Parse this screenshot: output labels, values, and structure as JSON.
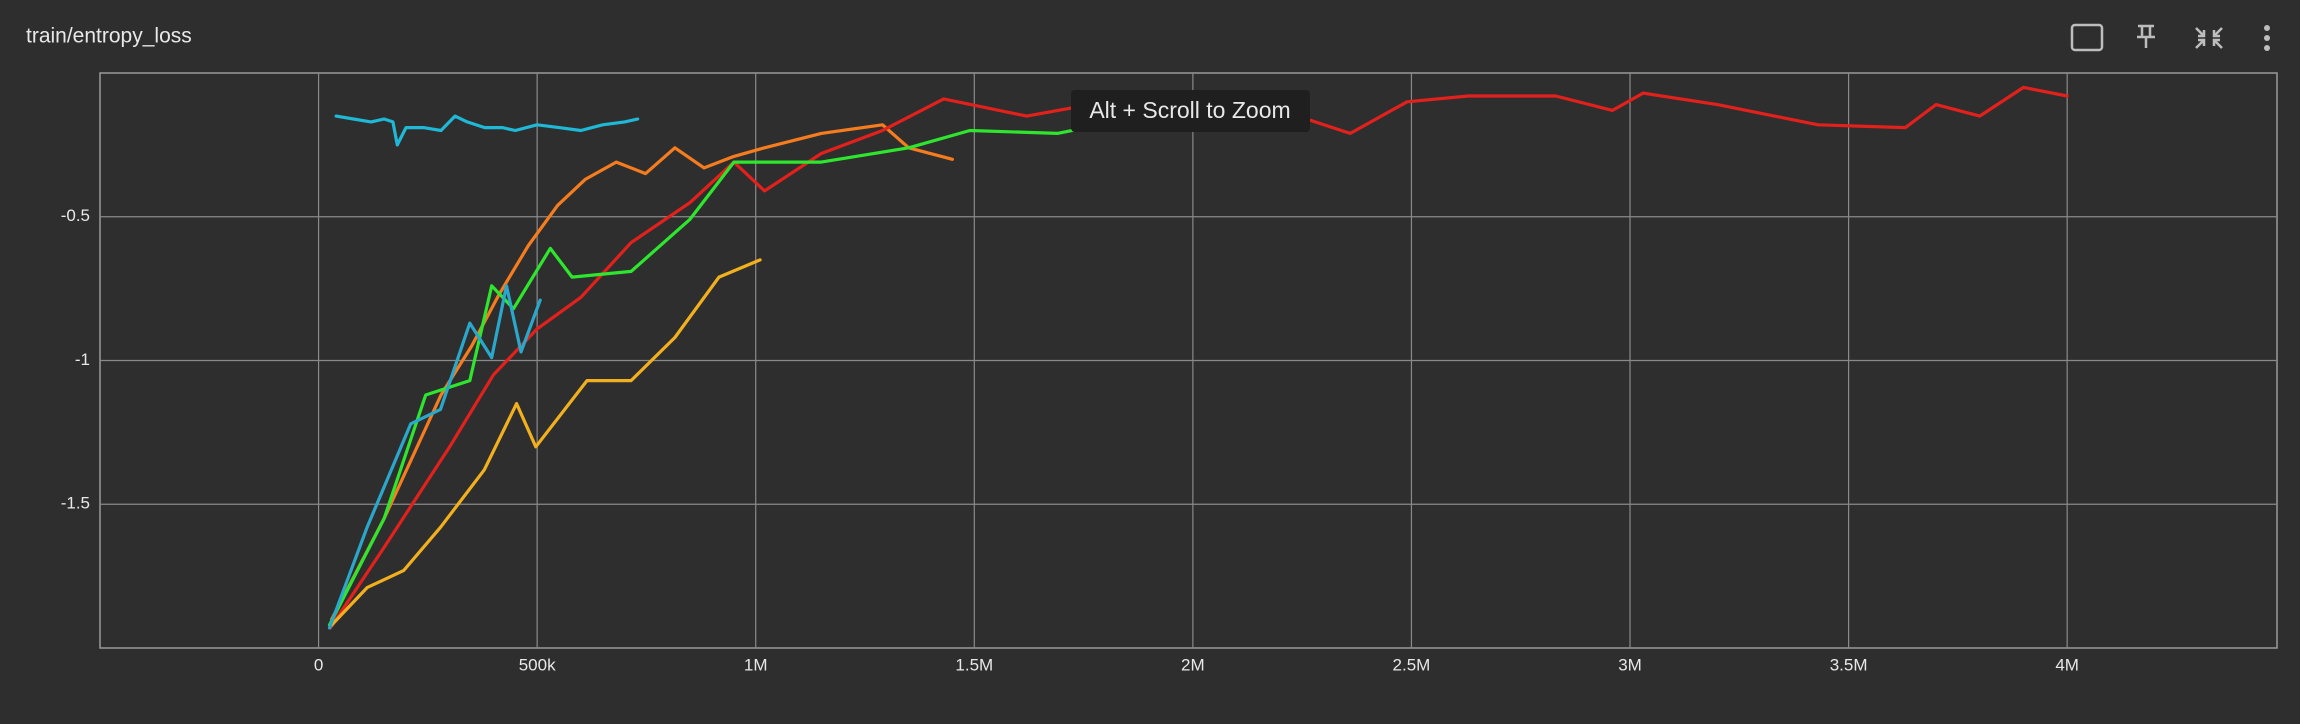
{
  "chart_data": {
    "type": "line",
    "title": "train/entropy_loss",
    "annotation": "Alt + Scroll to Zoom",
    "xlim": [
      -500000,
      4480000
    ],
    "ylim": [
      -2,
      0
    ],
    "grid": true,
    "xticks": [
      0,
      {
        "value": 500000,
        "label": "500k"
      },
      {
        "value": 1000000,
        "label": "1M"
      },
      {
        "value": 1500000,
        "label": "1.5M"
      },
      {
        "value": 2000000,
        "label": "2M"
      },
      {
        "value": 2500000,
        "label": "2.5M"
      },
      {
        "value": 3000000,
        "label": "3M"
      },
      {
        "value": 3500000,
        "label": "3.5M"
      },
      {
        "value": 4000000,
        "label": "4M"
      }
    ],
    "yticks": [
      -1.5,
      -1,
      -0.5
    ],
    "series": [
      {
        "color": "#1fb8d6",
        "x": [
          40000,
          80000,
          120000,
          150000,
          170000,
          180000,
          200000,
          240000,
          280000,
          312000,
          340000,
          380000,
          420000,
          450000,
          500000,
          550000,
          600000,
          650000,
          700000,
          730000
        ],
        "values": [
          -0.15,
          -0.16,
          -0.17,
          -0.16,
          -0.17,
          -0.25,
          -0.19,
          -0.19,
          -0.2,
          -0.15,
          -0.17,
          -0.19,
          -0.19,
          -0.2,
          -0.18,
          -0.19,
          -0.2,
          -0.18,
          -0.17,
          -0.16
        ]
      },
      {
        "color": "#f57c1f",
        "x": [
          30000,
          150000,
          280000,
          350000,
          413000,
          480000,
          547000,
          610000,
          681000,
          748000,
          815000,
          882000,
          950000,
          1020000,
          1150000,
          1290000,
          1350000,
          1450000
        ],
        "values": [
          -1.9,
          -1.55,
          -1.12,
          -0.95,
          -0.77,
          -0.6,
          -0.46,
          -0.37,
          -0.31,
          -0.35,
          -0.26,
          -0.33,
          -0.29,
          -0.26,
          -0.21,
          -0.18,
          -0.26,
          -0.3
        ]
      },
      {
        "color": "#e3211c",
        "x": [
          27000,
          150000,
          300000,
          400000,
          500000,
          600000,
          715000,
          850000,
          950000,
          1020000,
          1150000,
          1290000,
          1430000,
          1620000,
          1800000,
          1960000,
          2200000,
          2360000,
          2490000,
          2630000,
          2830000,
          2960000,
          3030000,
          3200000,
          3430000,
          3630000,
          3700000,
          3800000,
          3900000,
          4000000
        ],
        "values": [
          -1.93,
          -1.65,
          -1.3,
          -1.05,
          -0.89,
          -0.78,
          -0.59,
          -0.45,
          -0.31,
          -0.41,
          -0.28,
          -0.2,
          -0.09,
          -0.15,
          -0.1,
          -0.1,
          -0.13,
          -0.21,
          -0.1,
          -0.08,
          -0.08,
          -0.13,
          -0.07,
          -0.11,
          -0.18,
          -0.19,
          -0.11,
          -0.15,
          -0.05,
          -0.08
        ]
      },
      {
        "color": "#2de62d",
        "x": [
          25000,
          150000,
          245000,
          346000,
          396000,
          446000,
          530000,
          580000,
          715000,
          849000,
          950000,
          1150000,
          1350000,
          1490000,
          1690000,
          1890000,
          2000000
        ],
        "values": [
          -1.92,
          -1.55,
          -1.12,
          -1.07,
          -0.74,
          -0.82,
          -0.61,
          -0.71,
          -0.69,
          -0.51,
          -0.31,
          -0.31,
          -0.26,
          -0.2,
          -0.21,
          -0.15,
          -0.19
        ]
      },
      {
        "color": "#f2b01e",
        "x": [
          30000,
          111000,
          195000,
          279000,
          379000,
          453000,
          497000,
          614000,
          715000,
          815000,
          916000,
          1010000
        ],
        "values": [
          -1.92,
          -1.79,
          -1.73,
          -1.58,
          -1.38,
          -1.15,
          -1.3,
          -1.07,
          -1.07,
          -0.92,
          -0.71,
          -0.65
        ]
      },
      {
        "color": "#2aa8cc",
        "x": [
          25000,
          111000,
          211000,
          279000,
          346000,
          396000,
          430000,
          463000,
          507000
        ],
        "values": [
          -1.93,
          -1.58,
          -1.22,
          -1.17,
          -0.87,
          -0.99,
          -0.74,
          -0.97,
          -0.79
        ]
      }
    ]
  }
}
